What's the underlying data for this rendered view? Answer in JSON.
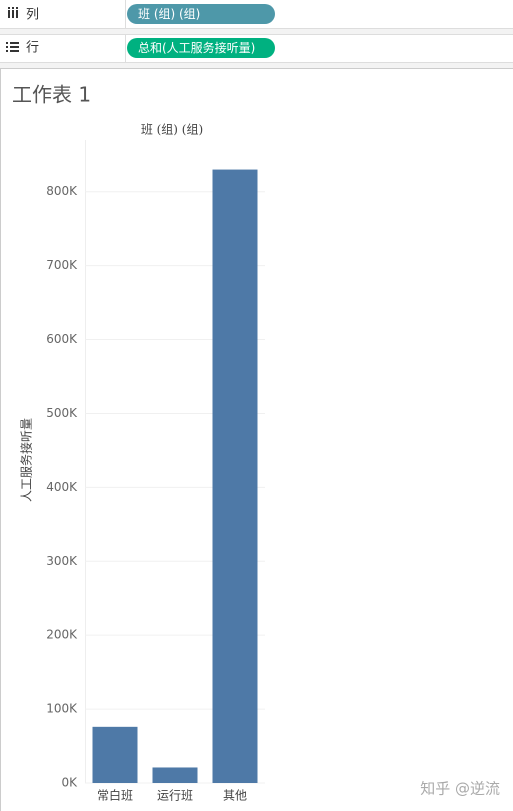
{
  "shelves": {
    "columns": {
      "label": "列",
      "pill": "班 (组) (组)"
    },
    "rows": {
      "label": "行",
      "pill": "总和(人工服务接听量)"
    }
  },
  "watermark": "知乎 @逆流",
  "chart_data": {
    "type": "bar",
    "title": "工作表 1",
    "subtitle": "班 (组) (组)",
    "y_label": "人工服务接听量",
    "categories": [
      "常白班",
      "运行班",
      "其他"
    ],
    "values": [
      76000,
      21000,
      830000
    ],
    "color": "#4e79a7",
    "ylim": [
      0,
      870000
    ],
    "yticks": [
      {
        "value": 0,
        "label": "0K"
      },
      {
        "value": 100000,
        "label": "100K"
      },
      {
        "value": 200000,
        "label": "200K"
      },
      {
        "value": 300000,
        "label": "300K"
      },
      {
        "value": 400000,
        "label": "400K"
      },
      {
        "value": 500000,
        "label": "500K"
      },
      {
        "value": 600000,
        "label": "600K"
      },
      {
        "value": 700000,
        "label": "700K"
      },
      {
        "value": 800000,
        "label": "800K"
      }
    ],
    "grid": true
  }
}
